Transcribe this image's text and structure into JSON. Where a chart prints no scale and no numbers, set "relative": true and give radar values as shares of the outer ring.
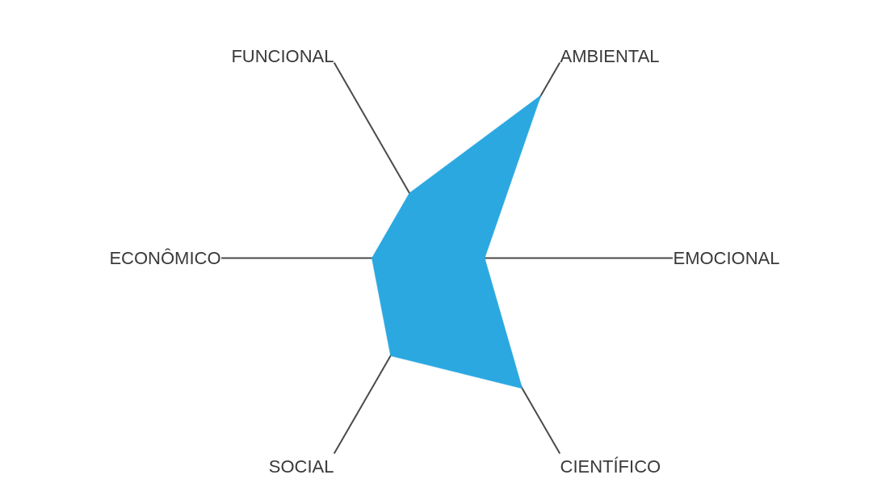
{
  "chart_data": {
    "type": "radar",
    "relative": true,
    "categories": [
      "AMBIENTAL",
      "EMOCIONAL",
      "CIENTÍFICO",
      "SOCIAL",
      "ECONÔMICO",
      "FUNCIONAL"
    ],
    "series": [
      {
        "color": "#2ba8e0",
        "values": [
          0.833,
          0.167,
          0.667,
          0.5,
          0.333,
          0.333
        ]
      }
    ]
  }
}
